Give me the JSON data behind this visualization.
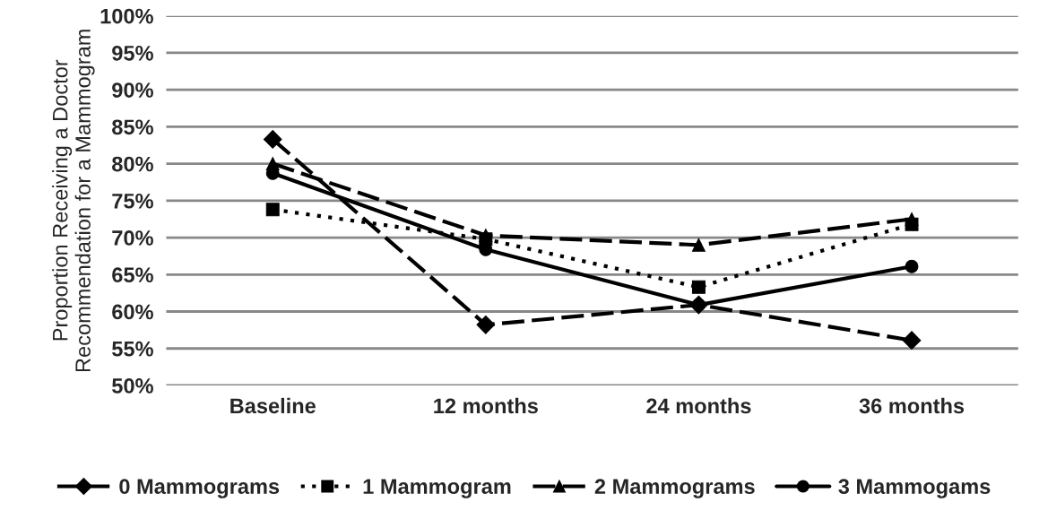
{
  "chart_data": {
    "type": "line",
    "ylabel": "Proportion Receiving a Doctor\nRecommendation for a Mammogram",
    "categories": [
      "Baseline",
      "12 months",
      "24 months",
      "36 months"
    ],
    "series": [
      {
        "name": "0 Mammograms",
        "color": "#000000",
        "marker": "diamond",
        "line_style": "dashed",
        "values": [
          83.3,
          58.2,
          60.9,
          56.1
        ]
      },
      {
        "name": "1 Mammogram",
        "color": "#000000",
        "marker": "square",
        "line_style": "dotted",
        "values": [
          73.8,
          69.8,
          63.3,
          71.8
        ]
      },
      {
        "name": "2 Mammograms",
        "color": "#000000",
        "marker": "triangle",
        "line_style": "dashed",
        "values": [
          80.0,
          70.3,
          69.0,
          72.5
        ]
      },
      {
        "name": "3 Mammogams",
        "color": "#000000",
        "marker": "circle",
        "line_style": "solid",
        "values": [
          78.7,
          68.4,
          60.9,
          66.1
        ]
      }
    ],
    "ylim": [
      50,
      100
    ],
    "yticks": [
      {
        "value": 50,
        "label": "50%"
      },
      {
        "value": 55,
        "label": "55%"
      },
      {
        "value": 60,
        "label": "60%"
      },
      {
        "value": 65,
        "label": "65%"
      },
      {
        "value": 70,
        "label": "70%"
      },
      {
        "value": 75,
        "label": "75%"
      },
      {
        "value": 80,
        "label": "80%"
      },
      {
        "value": 85,
        "label": "85%"
      },
      {
        "value": 90,
        "label": "90%"
      },
      {
        "value": 95,
        "label": "95%"
      },
      {
        "value": 100,
        "label": "100%"
      }
    ],
    "grid": "y",
    "legend": "bottom"
  }
}
